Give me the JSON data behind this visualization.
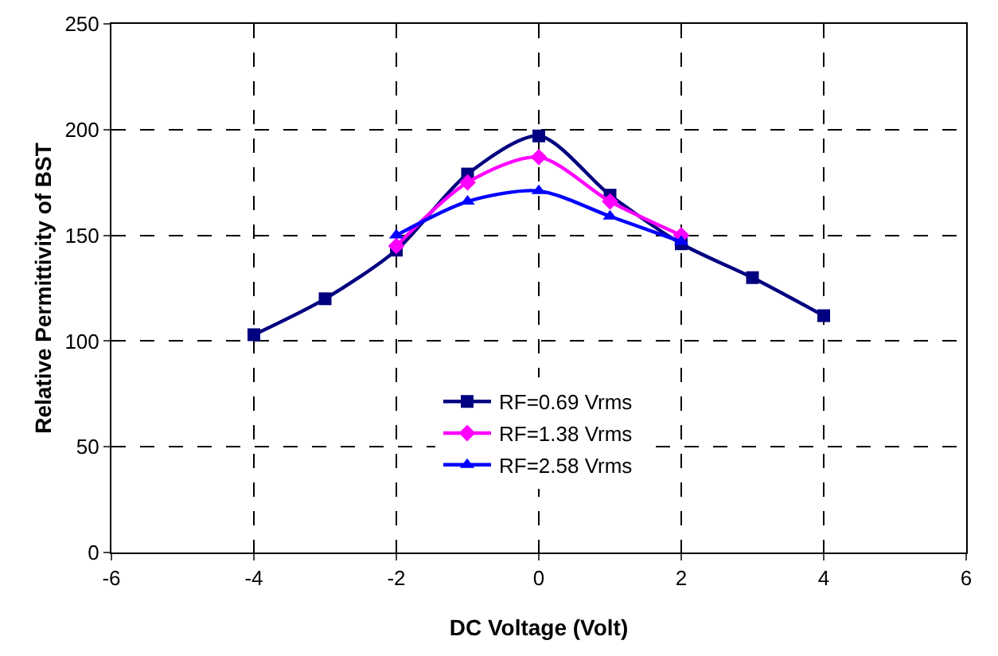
{
  "chart_data": {
    "type": "line",
    "xlabel": "DC Voltage (Volt)",
    "ylabel": "Relative Permittivity of BST",
    "xlim": [
      -6,
      6
    ],
    "xticks": [
      -6,
      -4,
      -2,
      0,
      2,
      4,
      6
    ],
    "ylim": [
      0,
      250
    ],
    "yticks": [
      0,
      50,
      100,
      150,
      200,
      250
    ],
    "grid": true,
    "legend": "bottom",
    "line_style": "solid",
    "series": [
      {
        "name": "RF=0.69 Vrms",
        "color": "#000080",
        "marker": "square",
        "x": [
          -4,
          -3,
          -2,
          -1,
          0,
          1,
          2,
          3,
          4
        ],
        "values": [
          103,
          120,
          143,
          179,
          197,
          169,
          146,
          130,
          112
        ]
      },
      {
        "name": "RF=1.38 Vrms",
        "color": "#ff00ff",
        "marker": "diamond",
        "x": [
          -2,
          -1,
          0,
          1,
          2
        ],
        "values": [
          145,
          175,
          187,
          166,
          150
        ]
      },
      {
        "name": "RF=2.58 Vrms",
        "color": "#0000ff",
        "marker": "triangle",
        "x": [
          -2,
          -1,
          0,
          1,
          2
        ],
        "values": [
          150,
          166,
          171,
          159,
          147
        ]
      }
    ]
  }
}
